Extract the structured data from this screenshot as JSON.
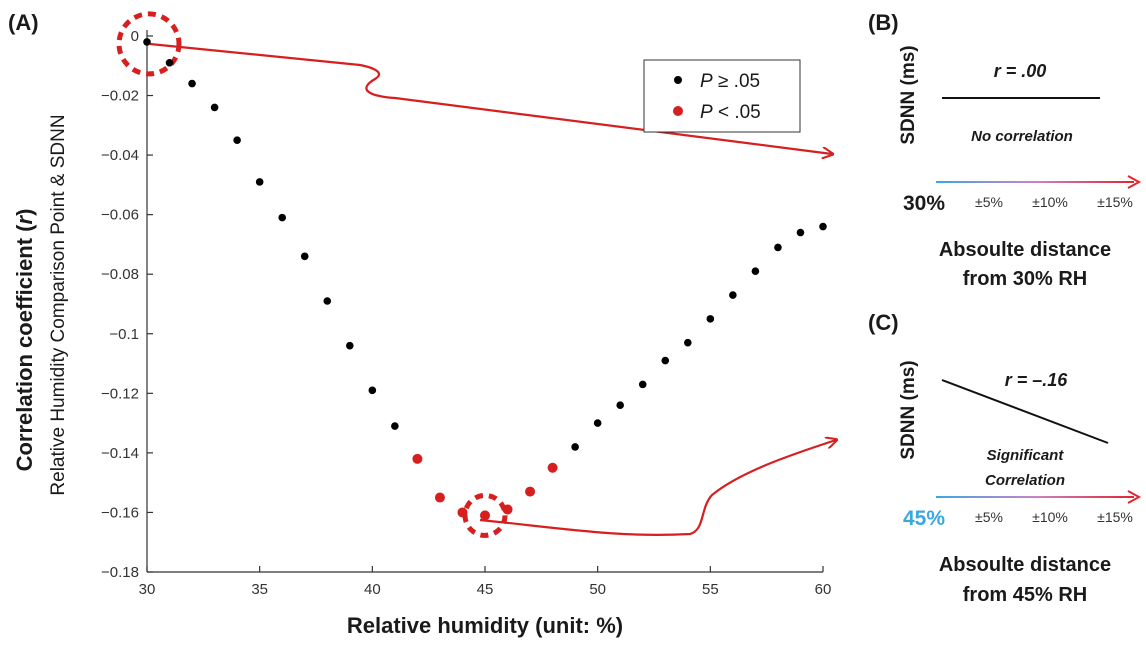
{
  "panel_a": {
    "label": "(A)",
    "ylabel": "Correlation coefficient (",
    "ylabel_italic": "r",
    "ylabel_close": ")",
    "ylabel_sub": "Relative Humidity Comparison Point & SDNN",
    "xlabel": "Relative humidity (unit: %)",
    "legend": [
      {
        "label_italic": "P",
        "label_rest": " ≥ .05",
        "color": "#000000"
      },
      {
        "label_italic": "P",
        "label_rest": " < .05",
        "color": "#d61f1f"
      }
    ]
  },
  "chart_data": {
    "type": "scatter",
    "x_ticks": [
      "30",
      "35",
      "40",
      "45",
      "50",
      "55",
      "60"
    ],
    "y_ticks": [
      "0",
      "−0.02",
      "−0.04",
      "−0.06",
      "−0.08",
      "−0.1",
      "−0.12",
      "−0.14",
      "−0.16",
      "−0.18"
    ],
    "xlim": [
      30,
      60
    ],
    "ylim": [
      -0.18,
      0.002
    ],
    "x": [
      30,
      31,
      32,
      33,
      34,
      35,
      36,
      37,
      38,
      39,
      40,
      41,
      42,
      43,
      44,
      45,
      46,
      47,
      48,
      49,
      50,
      51,
      52,
      53,
      54,
      55,
      56,
      57,
      58,
      59,
      60
    ],
    "y": [
      -0.002,
      -0.009,
      -0.016,
      -0.024,
      -0.035,
      -0.049,
      -0.061,
      -0.074,
      -0.089,
      -0.104,
      -0.119,
      -0.131,
      -0.142,
      -0.155,
      -0.16,
      -0.161,
      -0.159,
      -0.153,
      -0.145,
      -0.138,
      -0.13,
      -0.124,
      -0.117,
      -0.109,
      -0.103,
      -0.095,
      -0.087,
      -0.079,
      -0.071,
      -0.066,
      -0.064
    ],
    "significant": [
      false,
      false,
      false,
      false,
      false,
      false,
      false,
      false,
      false,
      false,
      false,
      false,
      true,
      true,
      true,
      true,
      true,
      true,
      true,
      false,
      false,
      false,
      false,
      false,
      false,
      false,
      false,
      false,
      false,
      false,
      false
    ],
    "highlighted_x": [
      30,
      45
    ],
    "colors": {
      "nonsignificant": "#000000",
      "significant": "#d61f1f",
      "highlight": "#d61f1f"
    },
    "grid": false,
    "legend_position": "top-right"
  },
  "panel_b": {
    "label": "(B)",
    "ylabel": "SDNN (ms)",
    "r_text": "r = .00",
    "note": "No correlation",
    "base_label": "30%",
    "base_color": "#1a1a1a",
    "ticks": [
      "±5%",
      "±10%",
      "±15%"
    ],
    "xtitle_line1": "Absoulte distance",
    "xtitle_line2": "from 30% RH"
  },
  "panel_c": {
    "label": "(C)",
    "ylabel": "SDNN (ms)",
    "r_text": "r = –.16",
    "note_line1": "Significant",
    "note_line2": "Correlation",
    "base_label": "45%",
    "base_color": "#3ba7e0",
    "ticks": [
      "±5%",
      "±10%",
      "±15%"
    ],
    "xtitle_line1": "Absoulte distance",
    "xtitle_line2": "from 45% RH"
  },
  "gradient_colors": {
    "start": "#3ba7e0",
    "end": "#e4242e"
  }
}
